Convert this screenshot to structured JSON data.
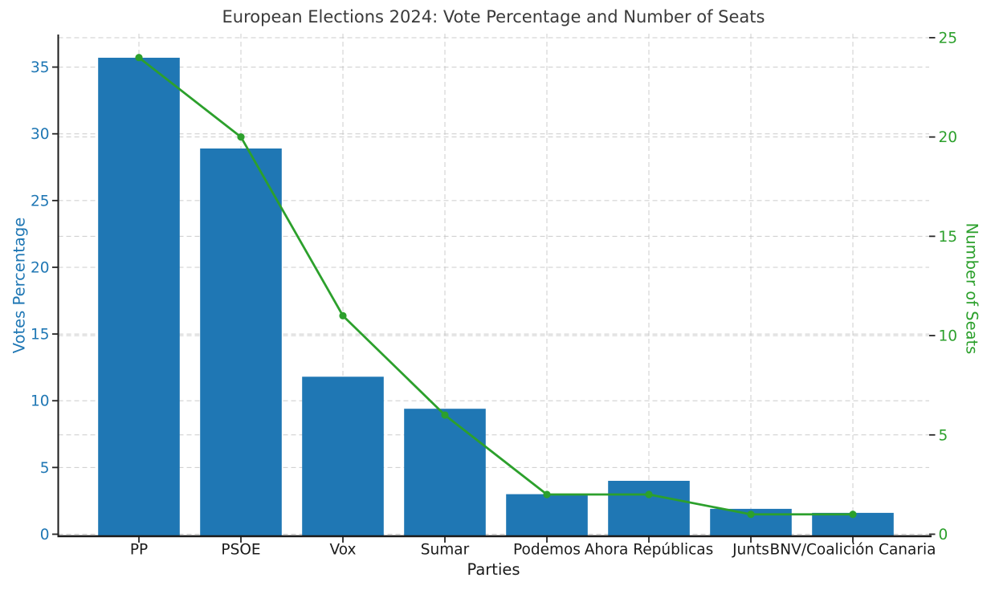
{
  "figure": {
    "title": "European Elections 2024: Vote Percentage and Number of Seats",
    "title_color": "#3a3a3a",
    "background": "#ffffff"
  },
  "chart_data": {
    "type": "bar",
    "title": "European Elections 2024: Vote Percentage and Number of Seats",
    "xlabel": "Parties",
    "ylabel_left": "Votes Percentage",
    "ylabel_right": "Number of Seats",
    "categories": [
      "PP",
      "PSOE",
      "Vox",
      "Sumar",
      "Podemos",
      "Ahora Repúblicas",
      "Junts",
      "BNV/Coalición Canaria"
    ],
    "series": [
      {
        "name": "Votes Percentage",
        "type": "bar",
        "axis": "left",
        "color": "#1f77b4",
        "values": [
          35.7,
          28.9,
          11.8,
          9.4,
          3.0,
          4.0,
          1.9,
          1.6
        ]
      },
      {
        "name": "Number of Seats",
        "type": "line",
        "axis": "right",
        "color": "#2ca02c",
        "marker": "circle",
        "values": [
          24,
          20,
          11,
          6,
          2,
          2,
          1,
          1
        ]
      }
    ],
    "ylim_left": [
      0,
      37.5
    ],
    "ylim_right": [
      0,
      25.2
    ],
    "yticks_left": [
      0,
      5,
      10,
      15,
      20,
      25,
      30,
      35
    ],
    "yticks_right": [
      0,
      5,
      10,
      15,
      20,
      25
    ],
    "grid": true,
    "legend": "none",
    "styles": {
      "left_axis_color": "#1f77b4",
      "right_axis_color": "#2ca02c",
      "xtick_label_color": "#1a1a1a",
      "grid_color": "#c3c3c3",
      "spine_color": "#1a1a1a",
      "tick_mark_color": "#262626",
      "bar_color": "#1f77b4",
      "line_color": "#2ca02c"
    }
  }
}
